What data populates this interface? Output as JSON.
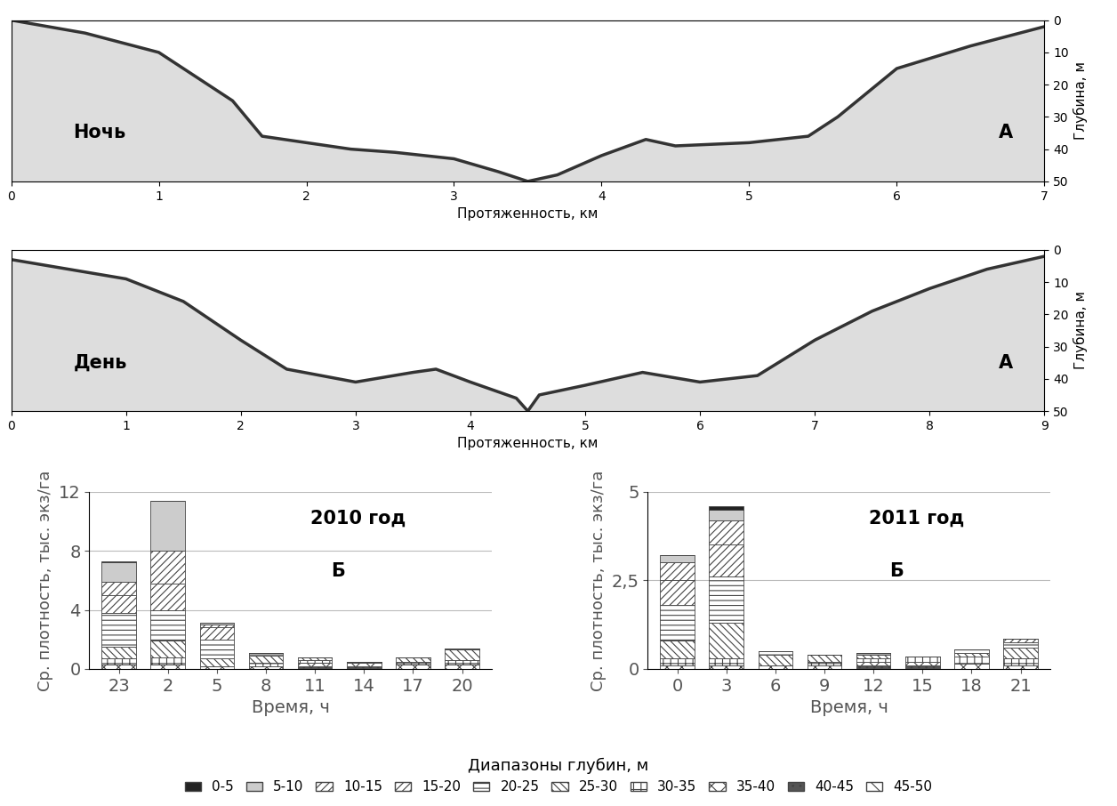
{
  "chart_data": [
    {
      "type": "line",
      "xlabel": "Протяженность, км",
      "ylabel": "Глубина, м",
      "annotations": [
        "Ночь",
        "А"
      ],
      "x": [
        0,
        0.5,
        1,
        1.5,
        1.7,
        2,
        2.3,
        2.6,
        3,
        3.3,
        3.5,
        3.7,
        4,
        4.3,
        4.5,
        5,
        5.4,
        5.6,
        6,
        6.5,
        7
      ],
      "values": [
        0,
        4,
        10,
        25,
        36,
        38,
        40,
        41,
        43,
        47,
        50,
        48,
        42,
        37,
        39,
        38,
        36,
        30,
        15,
        8,
        2
      ],
      "color": "#333333",
      "xlim": [
        0,
        7
      ],
      "xticks": [
        0,
        1,
        2,
        3,
        4,
        5,
        6,
        7
      ],
      "ylim": [
        50,
        0
      ],
      "yticks": [
        0,
        10,
        20,
        30,
        40,
        50
      ]
    },
    {
      "type": "line",
      "xlabel": "Протяженность, км",
      "ylabel": "Глубина, м",
      "annotations": [
        "День",
        "А"
      ],
      "x": [
        0,
        0.5,
        1,
        1.5,
        2,
        2.4,
        3,
        3.5,
        3.7,
        4,
        4.4,
        4.5,
        4.6,
        5,
        5.5,
        6,
        6.5,
        7,
        7.5,
        8,
        8.5,
        9
      ],
      "values": [
        3,
        6,
        9,
        16,
        28,
        37,
        41,
        38,
        37,
        41,
        46,
        50,
        45,
        42,
        38,
        41,
        39,
        28,
        19,
        12,
        6,
        2
      ],
      "color": "#333333",
      "xlim": [
        0,
        9
      ],
      "xticks": [
        0,
        1,
        2,
        3,
        4,
        5,
        6,
        7,
        8,
        9
      ],
      "ylim": [
        50,
        0
      ],
      "yticks": [
        0,
        10,
        20,
        30,
        40,
        50
      ]
    },
    {
      "type": "bar",
      "stacked": true,
      "xlabel": "Время, ч",
      "ylabel": "Ср. плотность, тыс. экз/га",
      "annotations": [
        "2010 год",
        "Б"
      ],
      "legend_title": "Диапазоны глубин, м",
      "categories": [
        "23",
        "2",
        "5",
        "8",
        "11",
        "14",
        "17",
        "20"
      ],
      "ylim": [
        0,
        12
      ],
      "yticks": [
        0,
        4,
        8,
        12
      ],
      "series": [
        {
          "name": "0-5",
          "color": "#222222",
          "values": [
            0.1,
            0,
            0,
            0,
            0,
            0,
            0,
            0
          ]
        },
        {
          "name": "5-10",
          "color": "#cccccc",
          "values": [
            1.3,
            3.4,
            0.1,
            0,
            0,
            0,
            0,
            0
          ]
        },
        {
          "name": "10-15",
          "color": "#ffffff",
          "values": [
            0.9,
            2.2,
            0.2,
            0,
            0,
            0,
            0,
            0
          ]
        },
        {
          "name": "15-20",
          "color": "#ffffff",
          "values": [
            1.2,
            1.8,
            0.8,
            0,
            0,
            0,
            0,
            0
          ]
        },
        {
          "name": "20-25",
          "color": "#ffffff",
          "values": [
            2.3,
            2.1,
            1.3,
            0.2,
            0,
            0,
            0,
            0.1
          ]
        },
        {
          "name": "25-30",
          "color": "#ffffff",
          "values": [
            0.8,
            1.1,
            0.5,
            0.5,
            0.2,
            0,
            0.3,
            0.7
          ]
        },
        {
          "name": "30-35",
          "color": "#ffffff",
          "values": [
            0.4,
            0.5,
            0,
            0.2,
            0.2,
            0.1,
            0.2,
            0.3
          ]
        },
        {
          "name": "35-40",
          "color": "#ffffff",
          "values": [
            0.3,
            0.3,
            0.2,
            0.2,
            0.2,
            0.2,
            0.3,
            0.3
          ]
        },
        {
          "name": "40-45",
          "color": "#555555",
          "values": [
            0,
            0,
            0,
            0,
            0.2,
            0.2,
            0,
            0
          ]
        },
        {
          "name": "45-50",
          "color": "#ffffff",
          "values": [
            0,
            0,
            0,
            0,
            0,
            0,
            0,
            0
          ]
        }
      ]
    },
    {
      "type": "bar",
      "stacked": true,
      "xlabel": "Время, ч",
      "ylabel": "Ср. плотность, тыс. экз/га",
      "annotations": [
        "2011 год",
        "Б"
      ],
      "categories": [
        "0",
        "3",
        "6",
        "9",
        "12",
        "15",
        "18",
        "21"
      ],
      "ylim": [
        0,
        5
      ],
      "yticks": [
        0,
        {
          "value": 2.5,
          "label": "2,5"
        },
        5
      ],
      "series": [
        {
          "name": "0-5",
          "color": "#222222",
          "values": [
            0,
            0.1,
            0,
            0,
            0,
            0,
            0,
            0
          ]
        },
        {
          "name": "5-10",
          "color": "#cccccc",
          "values": [
            0.2,
            0.3,
            0,
            0,
            0,
            0,
            0,
            0
          ]
        },
        {
          "name": "10-15",
          "color": "#ffffff",
          "values": [
            0.5,
            0.7,
            0,
            0,
            0,
            0,
            0,
            0
          ]
        },
        {
          "name": "15-20",
          "color": "#ffffff",
          "values": [
            0.7,
            0.9,
            0,
            0,
            0,
            0,
            0,
            0.1
          ]
        },
        {
          "name": "20-25",
          "color": "#ffffff",
          "values": [
            1.0,
            1.3,
            0.1,
            0,
            0.05,
            0,
            0.1,
            0.15
          ]
        },
        {
          "name": "25-30",
          "color": "#ffffff",
          "values": [
            0.5,
            1.0,
            0.3,
            0.2,
            0.1,
            0,
            0.1,
            0.3
          ]
        },
        {
          "name": "30-35",
          "color": "#ffffff",
          "values": [
            0.2,
            0.2,
            0,
            0.1,
            0.1,
            0.15,
            0.2,
            0.2
          ]
        },
        {
          "name": "35-40",
          "color": "#ffffff",
          "values": [
            0.1,
            0.1,
            0.1,
            0.1,
            0.1,
            0.1,
            0.15,
            0.1
          ]
        },
        {
          "name": "40-45",
          "color": "#555555",
          "values": [
            0,
            0,
            0,
            0,
            0.1,
            0.1,
            0,
            0
          ]
        },
        {
          "name": "45-50",
          "color": "#ffffff",
          "values": [
            0,
            0,
            0,
            0,
            0,
            0,
            0,
            0
          ]
        }
      ]
    }
  ]
}
